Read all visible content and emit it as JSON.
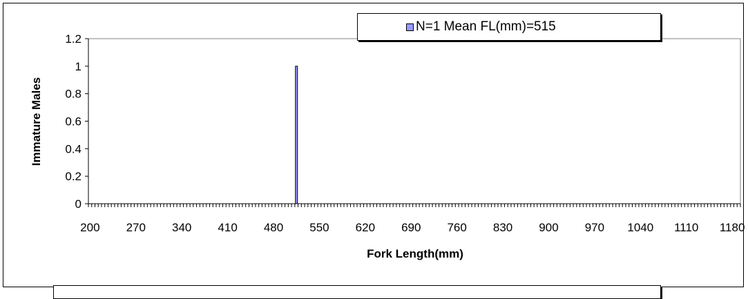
{
  "chart_data": {
    "type": "bar",
    "title": "",
    "xlabel": "Fork Length(mm)",
    "ylabel": "Immature Males",
    "x_range": [
      200,
      1190
    ],
    "x_step": 5,
    "x_tick_labels": [
      "200",
      "270",
      "340",
      "410",
      "480",
      "550",
      "620",
      "690",
      "760",
      "830",
      "900",
      "970",
      "1040",
      "1110",
      "1180"
    ],
    "ylim": [
      0,
      1.2
    ],
    "y_tick_labels": [
      "0",
      "0.2",
      "0.4",
      "0.6",
      "0.8",
      "1",
      "1.2"
    ],
    "series": [
      {
        "name": "N=1 Mean FL(mm)=515",
        "color": "#9999ff",
        "x": [
          515
        ],
        "values": [
          1
        ]
      }
    ],
    "grid": false,
    "legend_position": "top"
  }
}
